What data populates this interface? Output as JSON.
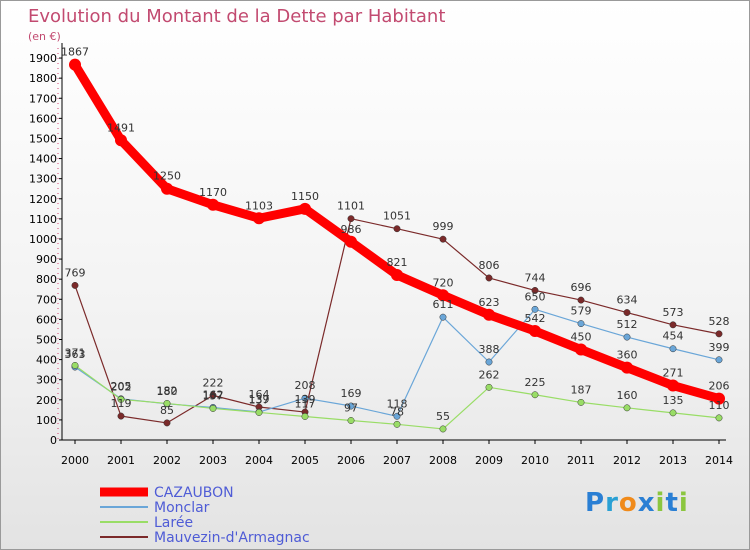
{
  "title": "Evolution du Montant de la Dette par Habitant",
  "unit_label": "(en €)",
  "logo_text": "Proxiti",
  "chart_data": {
    "type": "line",
    "title": "Evolution du Montant de la Dette par Habitant",
    "ylabel": "(en €)",
    "x": [
      2000,
      2001,
      2002,
      2003,
      2004,
      2005,
      2006,
      2007,
      2008,
      2009,
      2010,
      2011,
      2012,
      2013,
      2014
    ],
    "ylim": [
      0,
      1950
    ],
    "yticks": [
      0,
      100,
      200,
      300,
      400,
      500,
      600,
      700,
      800,
      900,
      1000,
      1100,
      1200,
      1300,
      1400,
      1500,
      1600,
      1700,
      1800,
      1900
    ],
    "grid": false,
    "legend": "bottom-left",
    "series": [
      {
        "name": "CAZAUBON",
        "color": "#ff0000",
        "values": [
          1867,
          1491,
          1250,
          1170,
          1103,
          1150,
          986,
          821,
          720,
          623,
          542,
          450,
          360,
          271,
          206
        ]
      },
      {
        "name": "Monclar",
        "color": "#6aa6d8",
        "values": [
          363,
          205,
          180,
          162,
          139,
          208,
          169,
          118,
          611,
          388,
          650,
          579,
          512,
          454,
          399
        ]
      },
      {
        "name": "Larée",
        "color": "#99dd66",
        "values": [
          371,
          202,
          182,
          157,
          137,
          117,
          97,
          78,
          55,
          262,
          225,
          187,
          160,
          135,
          110
        ]
      },
      {
        "name": "Mauvezin-d'Armagnac",
        "color": "#7b2a2a",
        "values": [
          769,
          119,
          85,
          222,
          164,
          139,
          1101,
          1051,
          999,
          806,
          744,
          696,
          634,
          573,
          528
        ]
      }
    ]
  }
}
